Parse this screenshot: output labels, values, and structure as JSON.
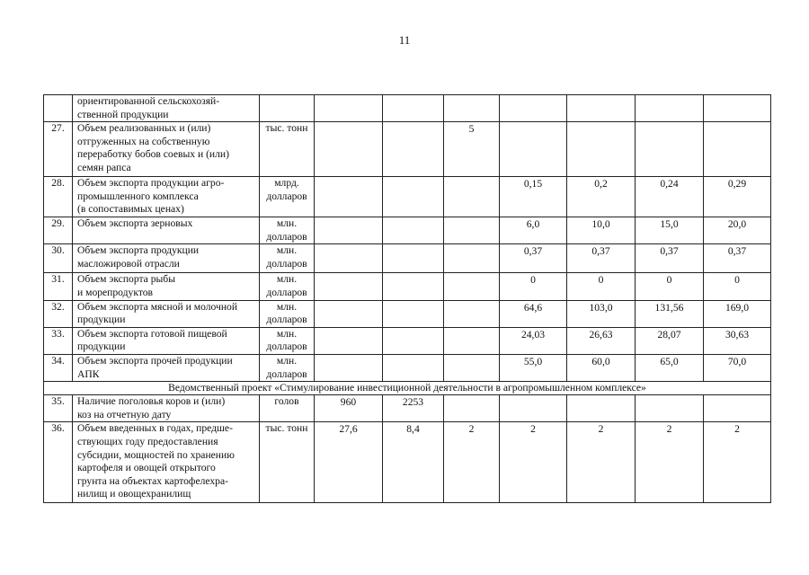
{
  "page_number": "11",
  "table": {
    "rows": [
      {
        "num": "",
        "name": "ориентированной сельскохозяй-\nственной продукции",
        "unit": "",
        "values": [
          "",
          "",
          "",
          "",
          "",
          "",
          ""
        ]
      },
      {
        "num": "27.",
        "name": "Объем реализованных и (или)\nотгруженных на собственную\nпереработку бобов соевых и (или)\nсемян рапса",
        "unit": "тыс. тонн",
        "values": [
          "",
          "",
          "5",
          "",
          "",
          "",
          ""
        ]
      },
      {
        "num": "28.",
        "name": "Объем экспорта продукции агро-\nпромышленного комплекса\n(в сопоставимых ценах)",
        "unit": "млрд.\nдолларов",
        "values": [
          "",
          "",
          "",
          "0,15",
          "0,2",
          "0,24",
          "0,29"
        ]
      },
      {
        "num": "29.",
        "name": "Объем экспорта зерновых",
        "unit": "млн.\nдолларов",
        "values": [
          "",
          "",
          "",
          "6,0",
          "10,0",
          "15,0",
          "20,0"
        ]
      },
      {
        "num": "30.",
        "name": "Объем экспорта продукции\nмасложировой отрасли",
        "unit": "млн.\nдолларов",
        "values": [
          "",
          "",
          "",
          "0,37",
          "0,37",
          "0,37",
          "0,37"
        ]
      },
      {
        "num": "31.",
        "name": "Объем экспорта рыбы\nи морепродуктов",
        "unit": "млн.\nдолларов",
        "values": [
          "",
          "",
          "",
          "0",
          "0",
          "0",
          "0"
        ]
      },
      {
        "num": "32.",
        "name": "Объем экспорта мясной и молочной\nпродукции",
        "unit": "млн.\nдолларов",
        "values": [
          "",
          "",
          "",
          "64,6",
          "103,0",
          "131,56",
          "169,0"
        ]
      },
      {
        "num": "33.",
        "name": "Объем экспорта готовой пищевой\nпродукции",
        "unit": "млн.\nдолларов",
        "values": [
          "",
          "",
          "",
          "24,03",
          "26,63",
          "28,07",
          "30,63"
        ]
      },
      {
        "num": "34.",
        "name": "Объем экспорта прочей продукции\nАПК",
        "unit": "млн.\nдолларов",
        "values": [
          "",
          "",
          "",
          "55,0",
          "60,0",
          "65,0",
          "70,0"
        ]
      },
      {
        "section": "Ведомственный проект «Стимулирование инвестиционной деятельности в агропромышленном комплексе»"
      },
      {
        "num": "35.",
        "name": "Наличие поголовья коров и (или)\nкоз на отчетную дату",
        "unit": "голов",
        "values": [
          "960",
          "2253",
          "",
          "",
          "",
          "",
          ""
        ]
      },
      {
        "num": "36.",
        "name": "Объем введенных в годах, предше-\nствующих году предоставления\nсубсидии, мощностей по хранению\nкартофеля и овощей открытого\nгрунта на объектах картофелехра-\nнилищ и овощехранилищ",
        "unit": "тыс. тонн",
        "values": [
          "27,6",
          "8,4",
          "2",
          "2",
          "2",
          "2",
          "2"
        ]
      }
    ]
  }
}
